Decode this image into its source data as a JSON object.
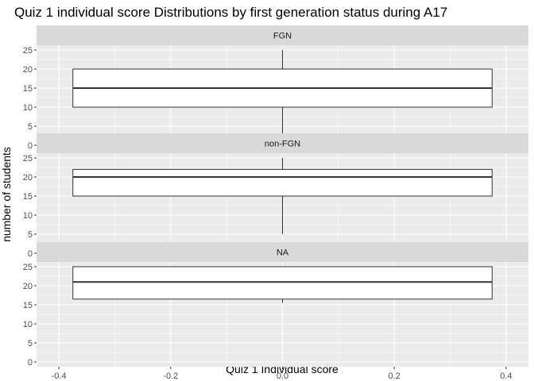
{
  "chart_data": {
    "type": "boxplot",
    "title": "Quiz 1 individual score Distributions by first generation status during A17",
    "xlabel": "Quiz 1 Individual score",
    "ylabel": "number of students",
    "xlim": [
      -0.4,
      0.4
    ],
    "ylim": [
      0,
      25
    ],
    "x_ticks": [
      -0.4,
      -0.2,
      0.0,
      0.2,
      0.4
    ],
    "x_tick_labels": [
      "-0.4",
      "-0.2",
      "0.0",
      "0.2",
      "0.4"
    ],
    "y_ticks": [
      0,
      5,
      10,
      15,
      20,
      25
    ],
    "y_tick_labels": [
      "0",
      "5",
      "10",
      "15",
      "20",
      "25"
    ],
    "box_x_range": [
      -0.375,
      0.375
    ],
    "whisker_x": 0.0,
    "grid": true,
    "panels": [
      {
        "name": "FGN",
        "q1": 10,
        "median": 15,
        "q3": 20,
        "whisker_low": 0,
        "whisker_high": 25,
        "outliers": []
      },
      {
        "name": "non-FGN",
        "q1": 15,
        "median": 20,
        "q3": 22,
        "whisker_low": 5,
        "whisker_high": 25,
        "outliers": [
          0
        ]
      },
      {
        "name": "NA",
        "q1": 16.5,
        "median": 21,
        "q3": 25,
        "whisker_low": 15.5,
        "whisker_high": 25,
        "outliers": []
      }
    ]
  },
  "colors": {
    "panel_bg": "#ebebeb",
    "strip_bg": "#d9d9d9",
    "grid_major": "#ffffff",
    "box_fill": "#ffffff",
    "box_line": "#333333"
  }
}
